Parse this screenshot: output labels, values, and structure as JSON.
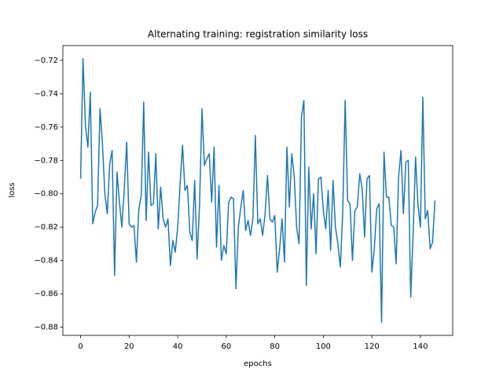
{
  "chart_data": {
    "type": "line",
    "title": "Alternating training: registration similarity loss",
    "x_label": "epochs",
    "y_label": "loss",
    "color": "#1f77b4",
    "grid": false,
    "x": [
      0,
      1,
      2,
      3,
      4,
      5,
      6,
      7,
      8,
      9,
      10,
      11,
      12,
      13,
      14,
      15,
      16,
      17,
      18,
      19,
      20,
      21,
      22,
      23,
      24,
      25,
      26,
      27,
      28,
      29,
      30,
      31,
      32,
      33,
      34,
      35,
      36,
      37,
      38,
      39,
      40,
      41,
      42,
      43,
      44,
      45,
      46,
      47,
      48,
      49,
      50,
      51,
      52,
      53,
      54,
      55,
      56,
      57,
      58,
      59,
      60,
      61,
      62,
      63,
      64,
      65,
      66,
      67,
      68,
      69,
      70,
      71,
      72,
      73,
      74,
      75,
      76,
      77,
      78,
      79,
      80,
      81,
      82,
      83,
      84,
      85,
      86,
      87,
      88,
      89,
      90,
      91,
      92,
      93,
      94,
      95,
      96,
      97,
      98,
      99,
      100,
      101,
      102,
      103,
      104,
      105,
      106,
      107,
      108,
      109,
      110,
      111,
      112,
      113,
      114,
      115,
      116,
      117,
      118,
      119,
      120,
      121,
      122,
      123,
      124,
      125,
      126,
      127,
      128,
      129,
      130,
      131,
      132,
      133,
      134,
      135,
      136,
      137,
      138,
      139,
      140,
      141,
      142,
      143,
      144,
      145,
      146
    ],
    "values": [
      -0.791,
      -0.719,
      -0.759,
      -0.772,
      -0.739,
      -0.818,
      -0.811,
      -0.807,
      -0.749,
      -0.77,
      -0.8,
      -0.812,
      -0.782,
      -0.774,
      -0.849,
      -0.787,
      -0.805,
      -0.82,
      -0.797,
      -0.769,
      -0.818,
      -0.82,
      -0.819,
      -0.841,
      -0.809,
      -0.801,
      -0.745,
      -0.816,
      -0.775,
      -0.807,
      -0.806,
      -0.776,
      -0.821,
      -0.796,
      -0.815,
      -0.82,
      -0.815,
      -0.843,
      -0.828,
      -0.835,
      -0.82,
      -0.794,
      -0.771,
      -0.798,
      -0.795,
      -0.823,
      -0.828,
      -0.792,
      -0.839,
      -0.807,
      -0.749,
      -0.783,
      -0.779,
      -0.776,
      -0.805,
      -0.772,
      -0.832,
      -0.795,
      -0.84,
      -0.831,
      -0.836,
      -0.805,
      -0.802,
      -0.803,
      -0.857,
      -0.82,
      -0.808,
      -0.798,
      -0.822,
      -0.816,
      -0.825,
      -0.815,
      -0.765,
      -0.818,
      -0.815,
      -0.825,
      -0.812,
      -0.789,
      -0.815,
      -0.817,
      -0.813,
      -0.847,
      -0.833,
      -0.815,
      -0.841,
      -0.772,
      -0.808,
      -0.776,
      -0.789,
      -0.82,
      -0.83,
      -0.754,
      -0.744,
      -0.855,
      -0.784,
      -0.821,
      -0.8,
      -0.836,
      -0.791,
      -0.79,
      -0.81,
      -0.821,
      -0.798,
      -0.834,
      -0.792,
      -0.82,
      -0.83,
      -0.844,
      -0.811,
      -0.744,
      -0.804,
      -0.806,
      -0.84,
      -0.81,
      -0.808,
      -0.788,
      -0.797,
      -0.826,
      -0.791,
      -0.789,
      -0.847,
      -0.833,
      -0.809,
      -0.806,
      -0.877,
      -0.775,
      -0.802,
      -0.802,
      -0.819,
      -0.82,
      -0.842,
      -0.79,
      -0.774,
      -0.812,
      -0.781,
      -0.78,
      -0.862,
      -0.824,
      -0.778,
      -0.807,
      -0.82,
      -0.742,
      -0.815,
      -0.81,
      -0.833,
      -0.829,
      -0.804
    ],
    "xlim": [
      -7.3,
      153.3
    ],
    "xticks": [
      0,
      20,
      40,
      60,
      80,
      100,
      120,
      140
    ],
    "ylim": [
      -0.8849,
      -0.7111
    ],
    "yticks": [
      {
        "value": -0.88,
        "label": "−0.88"
      },
      {
        "value": -0.86,
        "label": "−0.86"
      },
      {
        "value": -0.84,
        "label": "−0.84"
      },
      {
        "value": -0.82,
        "label": "−0.82"
      },
      {
        "value": -0.8,
        "label": "−0.80"
      },
      {
        "value": -0.78,
        "label": "−0.78"
      },
      {
        "value": -0.76,
        "label": "−0.76"
      },
      {
        "value": -0.74,
        "label": "−0.74"
      },
      {
        "value": -0.72,
        "label": "−0.72"
      }
    ]
  }
}
